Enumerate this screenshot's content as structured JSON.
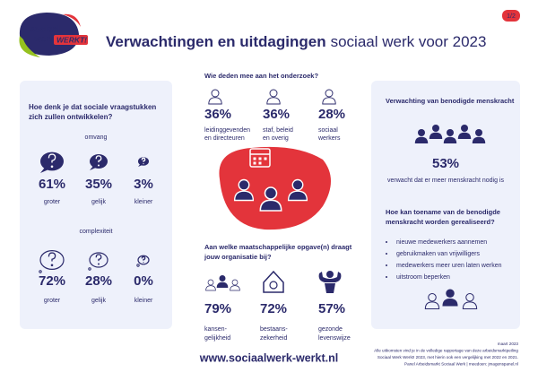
{
  "logo": {
    "line1": "sociaal",
    "line2": "werk",
    "tag": "WERKT!"
  },
  "header": {
    "title_bold": "Verwachtingen en uitdagingen",
    "title_rest": "sociaal werk voor 2023",
    "page": "1/2"
  },
  "left_panel": {
    "question": [
      "Hoe denk je dat sociale vraagstukken",
      "zich zullen ontwikkelen?"
    ],
    "sections": [
      {
        "heading": "omvang",
        "items": [
          {
            "value": "61%",
            "label": "groter"
          },
          {
            "value": "35%",
            "label": "gelijk"
          },
          {
            "value": "3%",
            "label": "kleiner"
          }
        ]
      },
      {
        "heading": "complexiteit",
        "items": [
          {
            "value": "72%",
            "label": "groter"
          },
          {
            "value": "28%",
            "label": "gelijk"
          },
          {
            "value": "0%",
            "label": "kleiner"
          }
        ]
      }
    ]
  },
  "participants": {
    "question": "Wie deden mee aan het onderzoek?",
    "items": [
      {
        "value": "36%",
        "label": [
          "leidinggevenden",
          "en directeuren"
        ]
      },
      {
        "value": "36%",
        "label": [
          "staf, beleid",
          "en overig"
        ]
      },
      {
        "value": "28%",
        "label": [
          "sociaal",
          "werkers"
        ]
      }
    ]
  },
  "contribution": {
    "question": [
      "Aan welke maatschappelijke opgave(n) draagt",
      "jouw organisatie bij?"
    ],
    "items": [
      {
        "value": "79%",
        "label": [
          "kansen-",
          "gelijkheid"
        ]
      },
      {
        "value": "72%",
        "label": [
          "bestaans-",
          "zekerheid"
        ]
      },
      {
        "value": "57%",
        "label": [
          "gezonde",
          "levenswijze"
        ]
      }
    ]
  },
  "right_panel": {
    "heading": "Verwachting van benodigde menskracht",
    "value": "53%",
    "value_caption": "verwacht dat er meer menskracht nodig is",
    "question": [
      "Hoe kan toename van de benodigde",
      "menskracht worden gerealiseerd?"
    ],
    "bullets": [
      "nieuwe medewerkers aannemen",
      "gebruikmaken van vrijwilligers",
      "medewerkers meer uren laten werken",
      "uitstroom beperken"
    ]
  },
  "footer": {
    "url": "www.sociaalwerk-werkt.nl",
    "notes": [
      "maart 2023",
      "Alle uitkomsten vind je in de volledige rapportage van deze arbeidsmarktpeiling",
      "Sociaal Werk Werkt! 2023, met hierin ook een vergelijking met 2022 en 2021.",
      "Panel Arbeidsmarkt Sociaal Werk | meedoen: jmagenspanel.nl"
    ]
  }
}
